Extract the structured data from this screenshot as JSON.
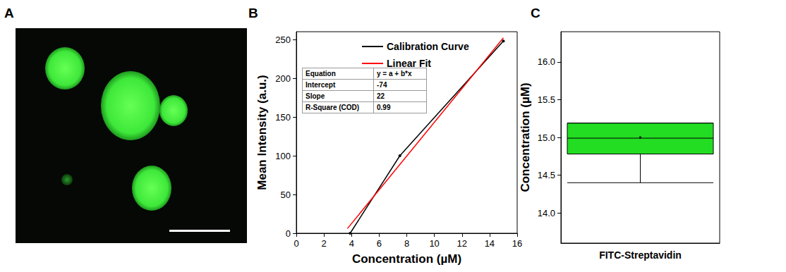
{
  "chart_data": [
    {
      "panel": "A",
      "type": "image"
    },
    {
      "panel": "B",
      "type": "line",
      "x_label": "Concentration (µM)",
      "y_label": "Mean Intensity (a.u.)",
      "xlim": [
        0,
        16
      ],
      "xticks": [
        0,
        2,
        4,
        6,
        8,
        10,
        12,
        14,
        16
      ],
      "ylim": [
        0,
        260
      ],
      "yticks": [
        0,
        50,
        100,
        150,
        200,
        250
      ],
      "legend": "top",
      "series": [
        {
          "name": "Calibration Curve",
          "color": "#000000",
          "marker": "circle",
          "x": [
            3.9,
            7.5,
            15
          ],
          "values": [
            0,
            100,
            248
          ]
        },
        {
          "name": "Linear Fit",
          "color": "#ff0000",
          "x": [
            3.7,
            15
          ],
          "values": [
            6,
            252
          ]
        }
      ],
      "annotations": {
        "table": [
          [
            "Equation",
            "y = a + b*x"
          ],
          [
            "Intercept",
            "-74"
          ],
          [
            "Slope",
            "22"
          ],
          [
            "R-Square (COD)",
            "0.99"
          ]
        ]
      }
    },
    {
      "panel": "C",
      "type": "boxplot",
      "categories": [
        "FITC-Streptavidin"
      ],
      "y_label": "Concentration (µM)",
      "ylim": [
        13.6,
        16.4
      ],
      "yticks": [
        {
          "value": 14,
          "label": "14.0"
        },
        {
          "value": 14.5,
          "label": "14.5"
        },
        {
          "value": 15,
          "label": "15.0"
        },
        {
          "value": 15.5,
          "label": "15.5"
        },
        {
          "value": 16,
          "label": "16.0"
        }
      ],
      "values": [
        [
          14.4,
          14.78,
          14.99,
          15.19,
          15.19
        ]
      ],
      "mean": [
        15.0
      ],
      "color": "#22dd22"
    }
  ]
}
